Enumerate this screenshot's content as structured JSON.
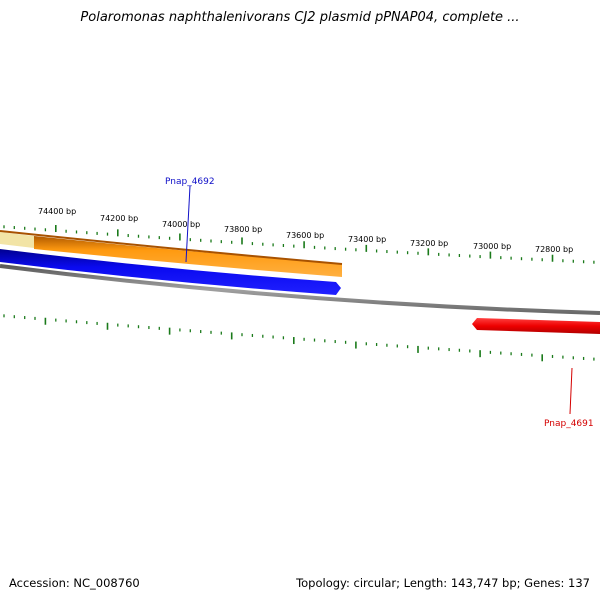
{
  "title": "Polaromonas naphthalenivorans CJ2 plasmid pPNAP04, complete ...",
  "ticks": {
    "labels": [
      "74400 bp",
      "74200 bp",
      "74000 bp",
      "73800 bp",
      "73600 bp",
      "73400 bp",
      "73200 bp",
      "73000 bp",
      "72800 bp"
    ]
  },
  "genes": [
    {
      "name": "Pnap_4692",
      "color": "#1010c8"
    },
    {
      "name": "Pnap_4691",
      "color": "#d40000"
    }
  ],
  "colors": {
    "tick": "#1a7a1a",
    "backbone": "#808080",
    "gene_orange": "#ff9900",
    "gene_pale": "#f0e0a0",
    "gene_blue": "#0000ee",
    "gene_red": "#ee0000"
  },
  "footer": {
    "accession": "Accession: NC_008760",
    "summary": "Topology: circular; Length: 143,747 bp; Genes: 137"
  }
}
